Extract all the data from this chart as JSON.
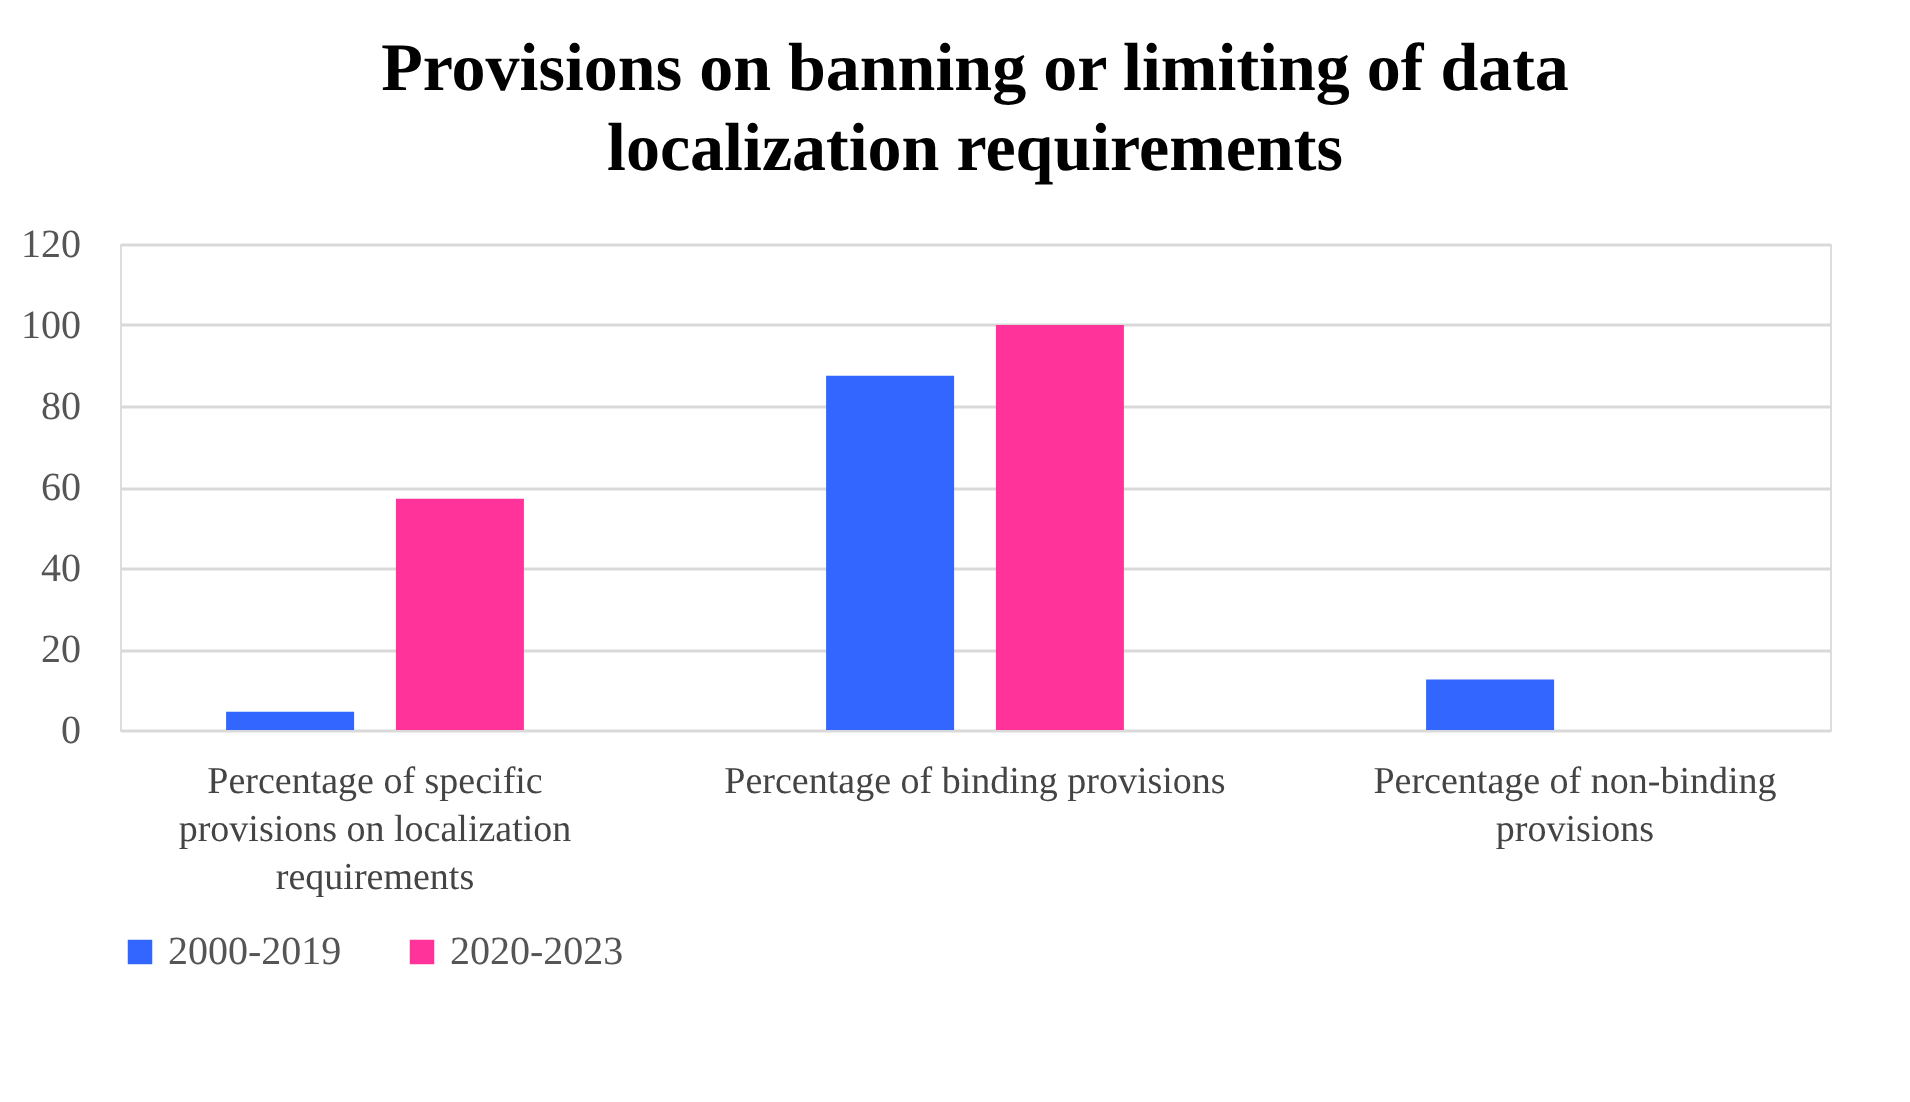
{
  "chart_data": {
    "type": "bar",
    "title": "Provisions on banning or limiting of data localization requirements",
    "categories": [
      "Percentage of specific provisions on localization requirements",
      "Percentage of binding provisions",
      "Percentage of non-binding provisions"
    ],
    "series": [
      {
        "name": "2000-2019",
        "color": "#3366ff",
        "values": [
          4.5,
          87.5,
          12.5
        ]
      },
      {
        "name": "2020-2023",
        "color": "#ff3399",
        "values": [
          57.1,
          100,
          0
        ]
      }
    ],
    "ylim": [
      0,
      120
    ],
    "yticks": [
      0,
      20,
      40,
      60,
      80,
      100,
      120
    ],
    "grid": "y",
    "legend": "bottom"
  }
}
